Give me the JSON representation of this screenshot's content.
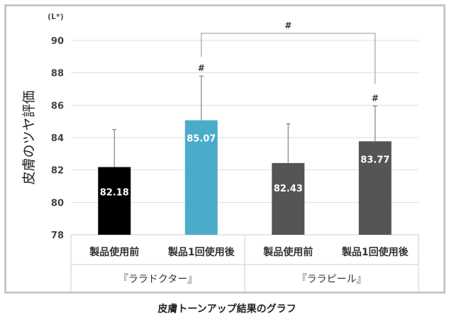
{
  "chart_data": {
    "type": "bar",
    "unit_label": "(L*)",
    "ylabel": "皮膚のツヤ評価",
    "ylim": [
      78,
      90
    ],
    "yticks": [
      78,
      80,
      82,
      84,
      86,
      88,
      90
    ],
    "grid": true,
    "categories": [
      "製品使用前",
      "製品1回使用後",
      "製品使用前",
      "製品1回使用後"
    ],
    "groups": [
      "『ララドクター』",
      "『ララピール』"
    ],
    "values": [
      82.18,
      85.07,
      82.43,
      83.77
    ],
    "error_upper": [
      84.5,
      87.8,
      84.85,
      85.95
    ],
    "colors": [
      "#000000",
      "#4aacca",
      "#555555",
      "#555555"
    ],
    "significance_marks": [
      "#",
      "#",
      "#"
    ]
  },
  "caption": "皮膚トーンアップ結果のグラフ"
}
